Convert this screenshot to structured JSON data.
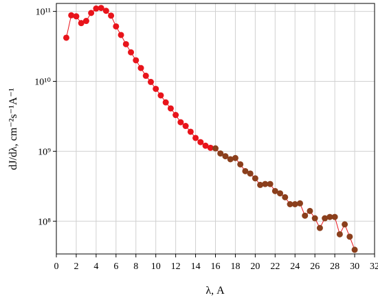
{
  "chart_data": {
    "type": "scatter-line",
    "x_label": "λ, A",
    "y_label": "dJ/dλ, cm⁻²s⁻¹A⁻¹",
    "log_y": true,
    "grid": true,
    "line_color": "#e8141b",
    "xlim": [
      0,
      32
    ],
    "xticks": [
      0,
      2,
      4,
      6,
      8,
      10,
      12,
      14,
      16,
      18,
      20,
      22,
      24,
      26,
      28,
      30,
      32
    ],
    "ylim": [
      34000000,
      130000000000
    ],
    "yticks": [
      {
        "value": 100000000,
        "label": "10⁸"
      },
      {
        "value": 1000000000,
        "label": "10⁹"
      },
      {
        "value": 10000000000,
        "label": "10¹⁰"
      },
      {
        "value": 100000000000,
        "label": "10¹¹"
      }
    ],
    "series": [
      {
        "color": "#e8141b",
        "x": [
          1,
          1.5,
          2,
          2.5,
          3,
          3.5,
          4,
          4.5,
          5,
          5.5,
          6,
          6.5,
          7,
          7.5,
          8,
          8.5,
          9,
          9.5,
          10,
          10.5,
          11,
          11.5,
          12,
          12.5,
          13,
          13.5,
          14,
          14.5,
          15,
          15.5
        ],
        "values": [
          42000000000,
          88000000000,
          85000000000,
          68000000000,
          73000000000,
          95000000000,
          110000000000,
          112000000000,
          102000000000,
          87000000000,
          61000000000,
          46000000000,
          34000000000,
          26000000000,
          20000000000,
          15500000000,
          12000000000,
          9800000000,
          7800000000,
          6300000000,
          5000000000,
          4100000000,
          3300000000,
          2600000000,
          2300000000,
          1900000000,
          1550000000,
          1350000000,
          1200000000,
          1120000000
        ]
      },
      {
        "color": "#8b3f1c",
        "x": [
          16,
          16.5,
          17,
          17.5,
          18,
          18.5,
          19,
          19.5,
          20,
          20.5,
          21,
          21.5,
          22,
          22.5,
          23,
          23.5,
          24,
          24.5,
          25,
          25.5,
          26,
          26.5,
          27,
          27.5,
          28,
          28.5,
          29,
          29.5,
          30
        ],
        "values": [
          1100000000,
          930000000,
          850000000,
          770000000,
          800000000,
          650000000,
          520000000,
          480000000,
          410000000,
          330000000,
          340000000,
          340000000,
          270000000,
          250000000,
          220000000,
          175000000,
          175000000,
          180000000,
          120000000,
          140000000,
          110000000,
          80000000,
          110000000,
          115000000,
          115000000,
          65000000,
          90000000,
          60000000,
          39000000
        ]
      }
    ]
  }
}
